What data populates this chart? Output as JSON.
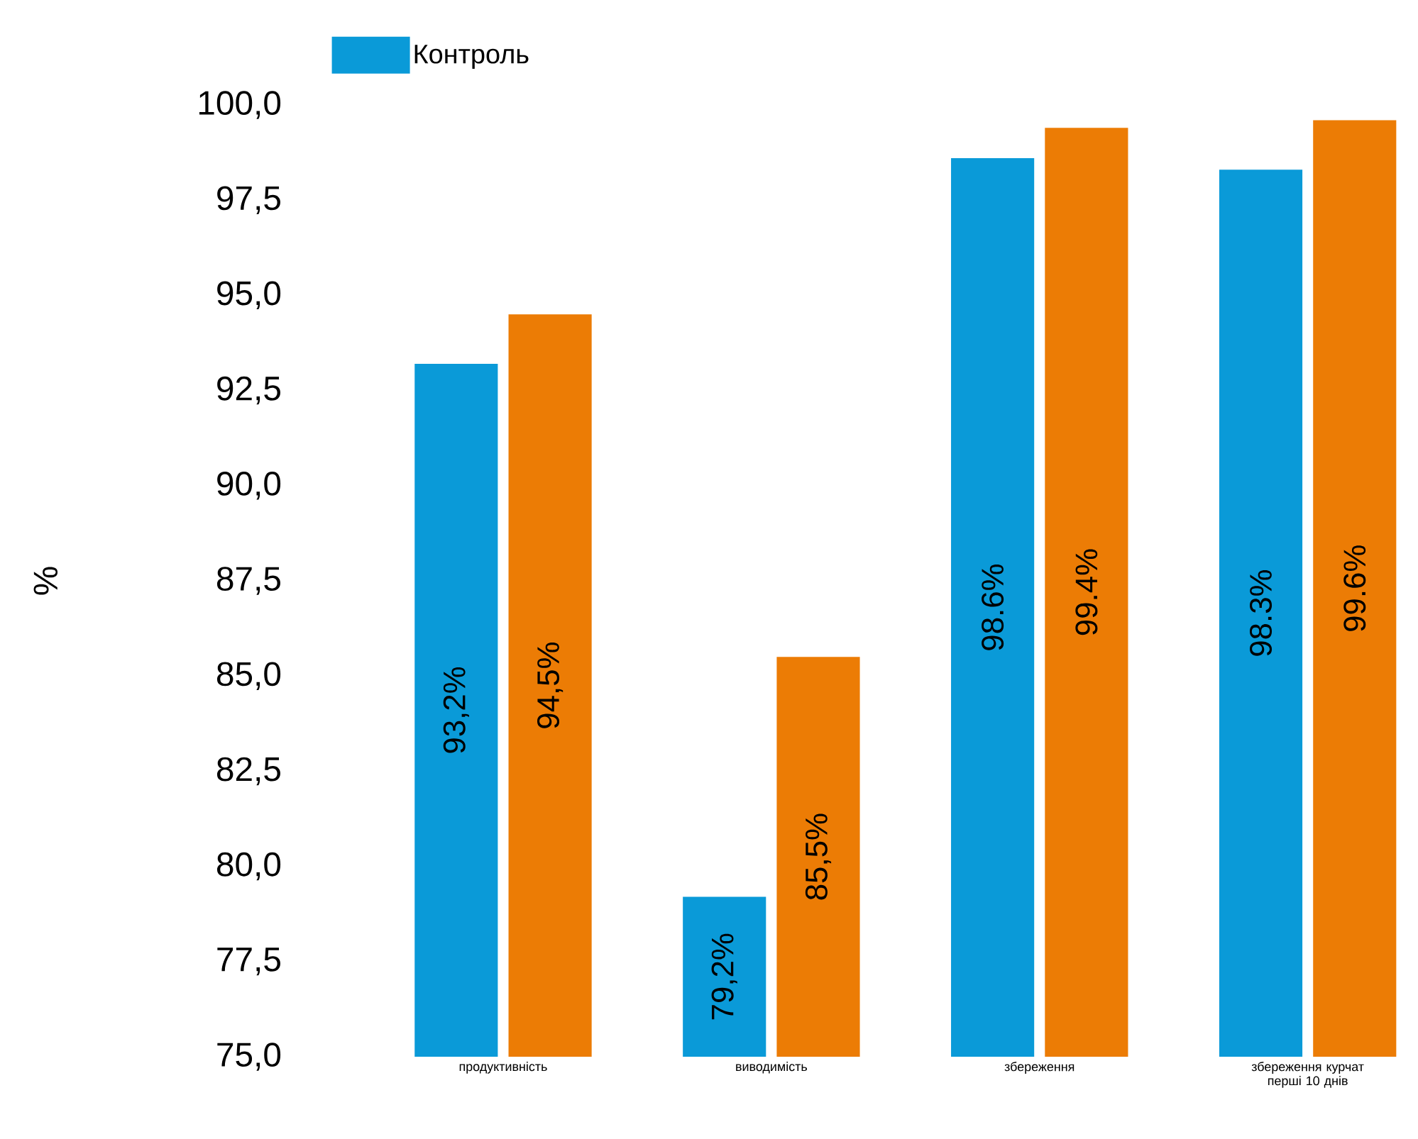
{
  "chart_data": {
    "type": "bar",
    "ylabel": "%",
    "categories": [
      "продуктивність",
      "виводимість",
      "збереження",
      "збереження курчат перші 10 днів"
    ],
    "series": [
      {
        "name": "Контроль",
        "color": "#0a9ad8",
        "values": [
          93.2,
          79.2,
          98.6,
          98.3
        ],
        "value_labels": [
          "93,2%",
          "79,2%",
          "98.6%",
          "98.3%"
        ]
      },
      {
        "color": "#ec7c05",
        "values": [
          94.5,
          85.5,
          99.4,
          99.6
        ],
        "value_labels": [
          "94,5%",
          "85,5%",
          "99.4%",
          "99.6%"
        ]
      }
    ],
    "ylim": [
      75,
      100
    ],
    "yticks": [
      {
        "value": 75,
        "label": "75,0"
      },
      {
        "value": 77.5,
        "label": "77,5"
      },
      {
        "value": 80,
        "label": "80,0"
      },
      {
        "value": 82.5,
        "label": "82,5"
      },
      {
        "value": 85,
        "label": "85,0"
      },
      {
        "value": 87.5,
        "label": "87,5"
      },
      {
        "value": 90,
        "label": "90,0"
      },
      {
        "value": 92.5,
        "label": "92,5"
      },
      {
        "value": 95,
        "label": "95,0"
      },
      {
        "value": 97.5,
        "label": "97,5"
      },
      {
        "value": 100,
        "label": "100,0"
      }
    ],
    "legend": "top left"
  }
}
